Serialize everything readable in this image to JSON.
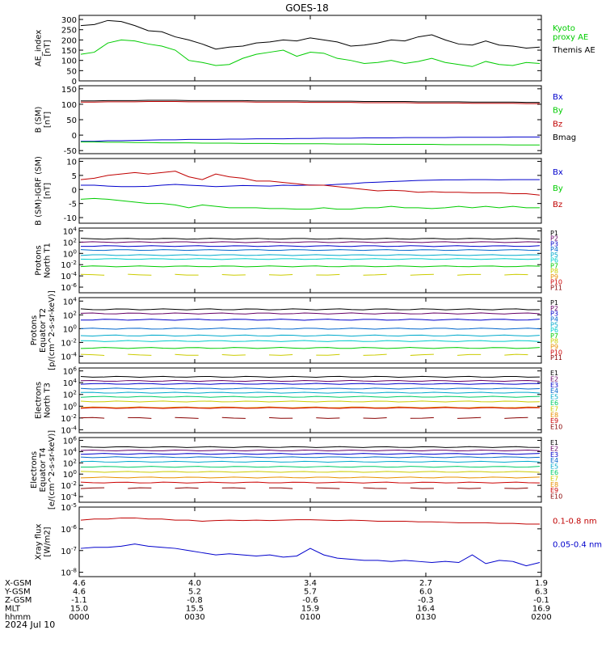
{
  "title": "GOES-18",
  "colors": {
    "black": "#000000",
    "red": "#c00000",
    "green": "#00cc00",
    "blue": "#0000cc",
    "darkred": "#a00000",
    "yellow": "#d8d800"
  },
  "bottom_axis": {
    "rows": [
      {
        "label": "X-GSM",
        "values": [
          "4.6",
          "4.0",
          "3.4",
          "2.7",
          "1.9"
        ]
      },
      {
        "label": "Y-GSM",
        "values": [
          "4.6",
          "5.2",
          "5.7",
          "6.0",
          "6.3"
        ]
      },
      {
        "label": "Z-GSM",
        "values": [
          "-1.1",
          "-0.8",
          "-0.6",
          "-0.3",
          "-0.1"
        ]
      },
      {
        "label": "MLT",
        "values": [
          "15.0",
          "15.5",
          "15.9",
          "16.4",
          "16.9"
        ]
      },
      {
        "label": "hhmm",
        "values": [
          "0000",
          "0030",
          "0100",
          "0130",
          "0200"
        ]
      }
    ],
    "date": "2024 Jul 10"
  },
  "chart_data": [
    {
      "type": "line",
      "ylabel": "AE_index\n[nT]",
      "yticks": [
        "300",
        "250",
        "200",
        "150",
        "100",
        "50",
        "0"
      ],
      "ylim": [
        0,
        320
      ],
      "legend": [
        {
          "text": "Kyoto\nproxy AE",
          "color": "#00cc00"
        },
        {
          "text": "Themis AE",
          "color": "#000000"
        }
      ],
      "series": [
        {
          "name": "Kyoto proxy AE",
          "color": "#00cc00",
          "values": [
            130,
            140,
            185,
            200,
            195,
            180,
            170,
            150,
            100,
            90,
            75,
            80,
            110,
            130,
            140,
            150,
            120,
            140,
            135,
            110,
            100,
            85,
            90,
            100,
            85,
            95,
            110,
            90,
            80,
            70,
            95,
            80,
            75,
            90,
            85
          ]
        },
        {
          "name": "Themis AE",
          "color": "#000000",
          "values": [
            270,
            275,
            295,
            290,
            270,
            245,
            240,
            215,
            200,
            180,
            155,
            165,
            170,
            185,
            190,
            200,
            195,
            210,
            200,
            190,
            170,
            175,
            185,
            200,
            195,
            215,
            225,
            200,
            180,
            175,
            195,
            175,
            170,
            160,
            165
          ]
        }
      ]
    },
    {
      "type": "line",
      "ylabel": "B (SM)\n[nT]",
      "yticks": [
        "150",
        "100",
        "50",
        "0",
        "-50"
      ],
      "ylim": [
        -60,
        160
      ],
      "legend": [
        {
          "text": "Bx",
          "color": "#0000cc"
        },
        {
          "text": "By",
          "color": "#00cc00"
        },
        {
          "text": "Bz",
          "color": "#c00000"
        },
        {
          "text": "Bmag",
          "color": "#000000"
        }
      ],
      "series": [
        {
          "name": "Bx",
          "color": "#0000cc",
          "values": [
            -20,
            -20,
            -18,
            -18,
            -17,
            -16,
            -15,
            -15,
            -14,
            -14,
            -14,
            -13,
            -13,
            -12,
            -12,
            -12,
            -11,
            -11,
            -10,
            -10,
            -10,
            -9,
            -9,
            -9,
            -8,
            -8,
            -8,
            -8,
            -7,
            -7,
            -7,
            -7,
            -6,
            -6,
            -6
          ]
        },
        {
          "name": "By",
          "color": "#00cc00",
          "values": [
            -22,
            -22,
            -23,
            -23,
            -24,
            -24,
            -25,
            -25,
            -25,
            -26,
            -26,
            -26,
            -27,
            -27,
            -27,
            -28,
            -28,
            -28,
            -28,
            -29,
            -29,
            -29,
            -30,
            -30,
            -30,
            -30,
            -30,
            -31,
            -31,
            -31,
            -31,
            -31,
            -32,
            -32,
            -32
          ]
        },
        {
          "name": "Bz",
          "color": "#c00000",
          "values": [
            107,
            107,
            108,
            108,
            108,
            109,
            109,
            109,
            108,
            108,
            108,
            108,
            108,
            107,
            107,
            107,
            107,
            106,
            106,
            106,
            106,
            105,
            105,
            105,
            105,
            104,
            104,
            104,
            104,
            103,
            103,
            103,
            103,
            102,
            102
          ]
        },
        {
          "name": "Bmag",
          "color": "#000000",
          "values": [
            111,
            111,
            112,
            112,
            112,
            113,
            113,
            113,
            112,
            112,
            112,
            112,
            112,
            111,
            111,
            111,
            111,
            110,
            110,
            110,
            110,
            109,
            109,
            109,
            109,
            108,
            108,
            108,
            108,
            107,
            107,
            107,
            107,
            106,
            106
          ]
        }
      ]
    },
    {
      "type": "line",
      "ylabel": "B (SM)-IGRF (SM)\n[nT]",
      "yticks": [
        "10",
        "5",
        "0",
        "-5",
        "-10"
      ],
      "ylim": [
        -12,
        11
      ],
      "legend": [
        {
          "text": "Bx",
          "color": "#0000cc"
        },
        {
          "text": "By",
          "color": "#00cc00"
        },
        {
          "text": "Bz",
          "color": "#c00000"
        }
      ],
      "series": [
        {
          "name": "Bx",
          "color": "#0000cc",
          "values": [
            1.5,
            1.5,
            1.2,
            1.0,
            1.0,
            1.1,
            1.5,
            1.8,
            1.5,
            1.3,
            1.0,
            1.2,
            1.4,
            1.3,
            1.2,
            1.5,
            1.4,
            1.6,
            1.5,
            1.8,
            2.0,
            2.4,
            2.6,
            2.8,
            3.0,
            3.2,
            3.3,
            3.4,
            3.4,
            3.5,
            3.5,
            3.4,
            3.5,
            3.5,
            3.5
          ]
        },
        {
          "name": "By",
          "color": "#00cc00",
          "values": [
            -3.5,
            -3.2,
            -3.5,
            -4.0,
            -4.5,
            -5.0,
            -5.0,
            -5.5,
            -6.5,
            -5.5,
            -6.0,
            -6.5,
            -6.5,
            -6.5,
            -6.8,
            -6.8,
            -7.0,
            -7.0,
            -6.5,
            -7.0,
            -7.0,
            -6.5,
            -6.5,
            -6.0,
            -6.5,
            -6.5,
            -6.8,
            -6.5,
            -6.0,
            -6.5,
            -6.0,
            -6.5,
            -6.0,
            -6.5,
            -6.5
          ]
        },
        {
          "name": "Bz",
          "color": "#c00000",
          "values": [
            3.5,
            4.0,
            5.0,
            5.5,
            6.0,
            5.5,
            6.0,
            6.5,
            4.5,
            3.5,
            5.5,
            4.5,
            4.0,
            3.0,
            3.0,
            2.5,
            2.0,
            1.5,
            1.5,
            1.0,
            0.5,
            0.0,
            -0.5,
            -0.3,
            -0.5,
            -1.0,
            -0.8,
            -1.0,
            -1.0,
            -1.2,
            -1.2,
            -1.2,
            -1.5,
            -1.5,
            -2.0
          ]
        }
      ]
    },
    {
      "type": "line",
      "scale": "log",
      "ylabel": "Protons\nNorth T1",
      "yticks": [
        "10^4",
        "10^2",
        "10^0",
        "10^-2",
        "10^-4",
        "10^-6"
      ],
      "ylim_exp": [
        -7,
        4.5
      ],
      "legend": [
        {
          "text": "P1",
          "color": "#000000"
        },
        {
          "text": "P2",
          "color": "#660066"
        },
        {
          "text": "P3",
          "color": "#0000cc"
        },
        {
          "text": "P4",
          "color": "#0066cc"
        },
        {
          "text": "P5",
          "color": "#00aacc"
        },
        {
          "text": "P6",
          "color": "#00cccc"
        },
        {
          "text": "P7",
          "color": "#00cc00"
        },
        {
          "text": "P8",
          "color": "#cccc00"
        },
        {
          "text": "P9",
          "color": "#e89000"
        },
        {
          "text": "P10",
          "color": "#cc0000"
        },
        {
          "text": "P11",
          "color": "#880000"
        }
      ],
      "series": [
        {
          "name": "P1",
          "color": "#000000",
          "level": 2.6
        },
        {
          "name": "P2",
          "color": "#660066",
          "level": 2.0
        },
        {
          "name": "P3",
          "color": "#0000cc",
          "level": 1.3
        },
        {
          "name": "P4",
          "color": "#0066cc",
          "level": 0.6
        },
        {
          "name": "P5",
          "color": "#00aacc",
          "level": -0.3
        },
        {
          "name": "P6",
          "color": "#00cccc",
          "level": -1.0
        },
        {
          "name": "P7",
          "color": "#00cc00",
          "level": -2.3
        },
        {
          "name": "P8",
          "color": "#cccc00",
          "level": -3.8,
          "gappy": true
        }
      ]
    },
    {
      "type": "line",
      "scale": "log",
      "ylabel": "Protons\nEquator T2\n[p/(cm^2-s-sr-keV)]",
      "yticks": [
        "10^4",
        "10^2",
        "10^0",
        "10^-2",
        "10^-4"
      ],
      "ylim_exp": [
        -5,
        4.5
      ],
      "legend": [
        {
          "text": "P1",
          "color": "#000000"
        },
        {
          "text": "P2",
          "color": "#660066"
        },
        {
          "text": "P3",
          "color": "#0000cc"
        },
        {
          "text": "P4",
          "color": "#0066cc"
        },
        {
          "text": "P5",
          "color": "#00aacc"
        },
        {
          "text": "P6",
          "color": "#00cccc"
        },
        {
          "text": "P7",
          "color": "#00cc00"
        },
        {
          "text": "P8",
          "color": "#cccc00"
        },
        {
          "text": "P9",
          "color": "#e89000"
        },
        {
          "text": "P10",
          "color": "#cc0000"
        },
        {
          "text": "P11",
          "color": "#880000"
        }
      ],
      "series": [
        {
          "name": "P1",
          "color": "#000000",
          "level": 2.8
        },
        {
          "name": "P2",
          "color": "#660066",
          "level": 2.2
        },
        {
          "name": "P3",
          "color": "#0000cc",
          "level": 1.3
        },
        {
          "name": "P4",
          "color": "#0066cc",
          "level": 0.0
        },
        {
          "name": "P5",
          "color": "#00aacc",
          "level": -1.0
        },
        {
          "name": "P6",
          "color": "#00cccc",
          "level": -1.8
        },
        {
          "name": "P7",
          "color": "#00cc00",
          "level": -2.8
        },
        {
          "name": "P8",
          "color": "#cccc00",
          "level": -3.8,
          "gappy": true
        }
      ]
    },
    {
      "type": "line",
      "scale": "log",
      "ylabel": "Electrons\nNorth T3",
      "yticks": [
        "10^6",
        "10^4",
        "10^2",
        "10^0",
        "10^-2",
        "10^-4"
      ],
      "ylim_exp": [
        -4.5,
        6.5
      ],
      "legend": [
        {
          "text": "E1",
          "color": "#000000"
        },
        {
          "text": "E2",
          "color": "#660066"
        },
        {
          "text": "E3",
          "color": "#0000cc"
        },
        {
          "text": "E4",
          "color": "#0066cc"
        },
        {
          "text": "E5",
          "color": "#00aacc"
        },
        {
          "text": "E6",
          "color": "#00cc66"
        },
        {
          "text": "E7",
          "color": "#cccc00"
        },
        {
          "text": "E8",
          "color": "#e89000"
        },
        {
          "text": "E9",
          "color": "#cc0000"
        },
        {
          "text": "E10",
          "color": "#880000"
        }
      ],
      "series": [
        {
          "name": "E1",
          "color": "#000000",
          "level": 5.0
        },
        {
          "name": "E2",
          "color": "#660066",
          "level": 4.3
        },
        {
          "name": "E3",
          "color": "#0000cc",
          "level": 3.8
        },
        {
          "name": "E4",
          "color": "#0066cc",
          "level": 3.0
        },
        {
          "name": "E5",
          "color": "#00aacc",
          "level": 2.3
        },
        {
          "name": "E6",
          "color": "#00cc66",
          "level": 1.6
        },
        {
          "name": "E7",
          "color": "#cccc00",
          "level": 0.8
        },
        {
          "name": "E8",
          "color": "#e89000",
          "level": -0.2
        },
        {
          "name": "E9",
          "color": "#cc0000",
          "level": -0.3
        },
        {
          "name": "E10",
          "color": "#880000",
          "level": -2.0,
          "gappy": true
        }
      ]
    },
    {
      "type": "line",
      "scale": "log",
      "ylabel": "Electrons\nEquator T4\n[e/(cm^2-s-sr-keV)]",
      "yticks": [
        "10^6",
        "10^4",
        "10^2",
        "10^0",
        "10^-2",
        "10^-4"
      ],
      "ylim_exp": [
        -5,
        6.5
      ],
      "legend": [
        {
          "text": "E1",
          "color": "#000000"
        },
        {
          "text": "E2",
          "color": "#660066"
        },
        {
          "text": "E3",
          "color": "#0000cc"
        },
        {
          "text": "E4",
          "color": "#0066cc"
        },
        {
          "text": "E5",
          "color": "#00aacc"
        },
        {
          "text": "E6",
          "color": "#00cc66"
        },
        {
          "text": "E7",
          "color": "#cccc00"
        },
        {
          "text": "E8",
          "color": "#e89000"
        },
        {
          "text": "E9",
          "color": "#cc0000"
        },
        {
          "text": "E10",
          "color": "#880000"
        }
      ],
      "series": [
        {
          "name": "E1",
          "color": "#000000",
          "level": 4.8
        },
        {
          "name": "E2",
          "color": "#660066",
          "level": 4.2
        },
        {
          "name": "E3",
          "color": "#0000cc",
          "level": 3.6
        },
        {
          "name": "E4",
          "color": "#0066cc",
          "level": 3.0
        },
        {
          "name": "E5",
          "color": "#00aacc",
          "level": 2.2
        },
        {
          "name": "E6",
          "color": "#00cc66",
          "level": 1.3
        },
        {
          "name": "E7",
          "color": "#cccc00",
          "level": 0.4
        },
        {
          "name": "E8",
          "color": "#e89000",
          "level": -0.6
        },
        {
          "name": "E9",
          "color": "#cc0000",
          "level": -1.5
        },
        {
          "name": "E10",
          "color": "#880000",
          "level": -2.5,
          "gappy": true
        }
      ]
    },
    {
      "type": "line",
      "scale": "log",
      "ylabel": "Xray flux\n[W/m2]",
      "yticks": [
        "10^-5",
        "10^-6",
        "10^-7",
        "10^-8"
      ],
      "ylim_exp": [
        -8.2,
        -5
      ],
      "legend": [
        {
          "text": "0.1-0.8 nm",
          "color": "#c00000"
        },
        {
          "text": "0.05-0.4 nm",
          "color": "#0000cc"
        }
      ],
      "series": [
        {
          "name": "0.1-0.8 nm",
          "color": "#c00000",
          "values": [
            -5.6,
            -5.55,
            -5.55,
            -5.5,
            -5.5,
            -5.55,
            -5.55,
            -5.6,
            -5.6,
            -5.65,
            -5.62,
            -5.6,
            -5.62,
            -5.6,
            -5.62,
            -5.6,
            -5.58,
            -5.58,
            -5.6,
            -5.62,
            -5.6,
            -5.62,
            -5.65,
            -5.65,
            -5.65,
            -5.68,
            -5.68,
            -5.7,
            -5.72,
            -5.72,
            -5.72,
            -5.75,
            -5.75,
            -5.78,
            -5.78
          ]
        },
        {
          "name": "0.05-0.4 nm",
          "color": "#0000cc",
          "values": [
            -6.9,
            -6.85,
            -6.85,
            -6.8,
            -6.7,
            -6.8,
            -6.85,
            -6.9,
            -7.0,
            -7.1,
            -7.2,
            -7.15,
            -7.2,
            -7.25,
            -7.2,
            -7.3,
            -7.25,
            -6.9,
            -7.2,
            -7.35,
            -7.4,
            -7.45,
            -7.45,
            -7.5,
            -7.45,
            -7.5,
            -7.55,
            -7.5,
            -7.55,
            -7.2,
            -7.6,
            -7.45,
            -7.5,
            -7.7,
            -7.55
          ]
        }
      ]
    }
  ]
}
